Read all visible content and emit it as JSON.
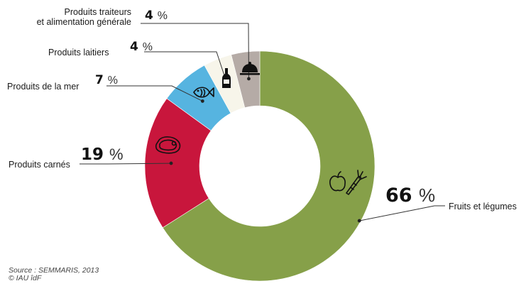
{
  "chart_data": {
    "type": "pie",
    "variant": "donut",
    "categories": [
      "Fruits et légumes",
      "Produits carnés",
      "Produits de la mer",
      "Produits laitiers",
      "Produits traiteurs et alimentation générale"
    ],
    "values": [
      66,
      19,
      7,
      4,
      4
    ],
    "unit": "%",
    "colors": [
      "#86a049",
      "#c8163c",
      "#56b4e0",
      "#f7f5ea",
      "#b5aba6"
    ],
    "icons": [
      "apple-carrot-icon",
      "steak-icon",
      "fish-icon",
      "milk-bottle-icon",
      "cloche-icon"
    ],
    "slices": [
      {
        "label": "Fruits et légumes",
        "value": 66,
        "label_lines": [
          "Fruits et légumes"
        ]
      },
      {
        "label": "Produits carnés",
        "value": 19,
        "label_lines": [
          "Produits carnés"
        ]
      },
      {
        "label": "Produits de la mer",
        "value": 7,
        "label_lines": [
          "Produits de la mer"
        ]
      },
      {
        "label": "Produits laitiers",
        "value": 4,
        "label_lines": [
          "Produits laitiers"
        ]
      },
      {
        "label": "Produits traiteurs et alimentation générale",
        "value": 4,
        "label_lines": [
          "Produits traiteurs",
          "et alimentation générale"
        ]
      }
    ]
  },
  "source_lines": [
    "Source : SEMMARIS, 2013",
    "© IAU îdF"
  ]
}
